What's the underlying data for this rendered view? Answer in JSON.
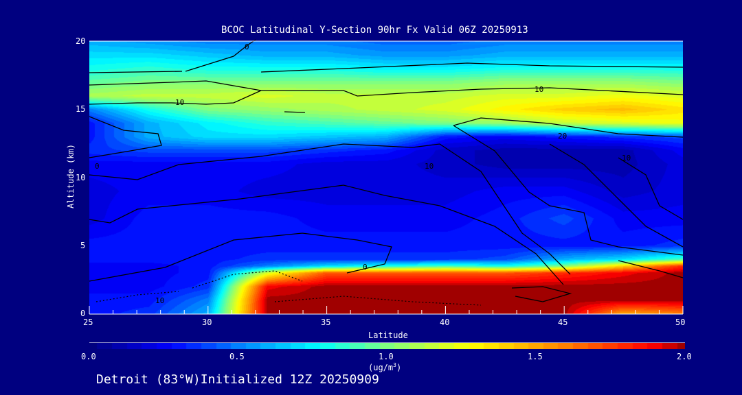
{
  "chart_data": {
    "type": "heatmap",
    "subtype": "filled-contour-cross-section",
    "title": "BCOC Latitudinal Y-Section 90hr  Fx Valid 06Z 20250913",
    "xlabel": "Latitude",
    "ylabel": "Altitude (km)",
    "xlim": [
      25,
      50
    ],
    "ylim": [
      0,
      20
    ],
    "xticks": [
      "25",
      "30",
      "35",
      "40",
      "45",
      "50"
    ],
    "yticks": [
      "0",
      "5",
      "10",
      "15",
      "20"
    ],
    "colorbar": {
      "range": [
        0.0,
        2.0
      ],
      "ticks": [
        "0.0",
        "0.5",
        "1.0",
        "1.5",
        "2.0"
      ],
      "units_prefix": "(ug/m",
      "units_sup": "3",
      "units_suffix": ")",
      "stops": [
        [
          0,
          "#000080"
        ],
        [
          0.27,
          "#0000ff"
        ],
        [
          0.5,
          "#0080ff"
        ],
        [
          0.77,
          "#00ffff"
        ],
        [
          1.0,
          "#80ff80"
        ],
        [
          1.28,
          "#ffff00"
        ],
        [
          1.6,
          "#ff8000"
        ],
        [
          1.89,
          "#ff0000"
        ],
        [
          2.0,
          "#a00000"
        ]
      ]
    },
    "grid_lat": [
      25,
      27.5,
      30,
      32.5,
      35,
      37.5,
      40,
      42.5,
      45,
      47.5,
      50
    ],
    "grid_alt": [
      0,
      1,
      2,
      3,
      3.5,
      4,
      5,
      7,
      9,
      11,
      12,
      13,
      14,
      15,
      16,
      17,
      18,
      19,
      20
    ],
    "values": [
      [
        0.3,
        0.35,
        0.6,
        2,
        2,
        2,
        2,
        2,
        2,
        1.5,
        1.6
      ],
      [
        0.3,
        0.3,
        0.5,
        2,
        2,
        2,
        2,
        2,
        2,
        2,
        2
      ],
      [
        0.25,
        0.25,
        0.35,
        1.9,
        2,
        2,
        2,
        2,
        2,
        2,
        2
      ],
      [
        0.25,
        0.25,
        0.3,
        1.2,
        1.7,
        1.7,
        1.7,
        1.7,
        1.8,
        1.9,
        2
      ],
      [
        0.25,
        0.25,
        0.3,
        0.5,
        0.7,
        0.8,
        0.9,
        0.8,
        1.0,
        1.4,
        1.8
      ],
      [
        0.3,
        0.3,
        0.3,
        0.35,
        0.35,
        0.35,
        0.35,
        0.4,
        0.6,
        0.7,
        0.9
      ],
      [
        0.3,
        0.3,
        0.3,
        0.3,
        0.3,
        0.3,
        0.3,
        0.3,
        0.3,
        0.3,
        0.35
      ],
      [
        0.2,
        0.3,
        0.3,
        0.3,
        0.25,
        0.25,
        0.25,
        0.3,
        0.4,
        0.25,
        0.25
      ],
      [
        0.2,
        0.25,
        0.25,
        0.2,
        0.2,
        0.2,
        0.2,
        0.25,
        0.25,
        0.15,
        0.2
      ],
      [
        0.25,
        0.25,
        0.25,
        0.25,
        0.2,
        0.2,
        0.15,
        0.1,
        0.1,
        0.1,
        0.2
      ],
      [
        0.35,
        0.4,
        0.4,
        0.4,
        0.35,
        0.3,
        0.15,
        0.1,
        0.1,
        0.1,
        0.25
      ],
      [
        0.3,
        0.6,
        0.7,
        0.7,
        0.65,
        0.6,
        0.3,
        0.25,
        0.3,
        0.35,
        0.4
      ],
      [
        0.3,
        0.6,
        0.75,
        0.85,
        0.9,
        0.95,
        1.0,
        1.05,
        1.15,
        1.2,
        1.25
      ],
      [
        0.5,
        0.8,
        1.0,
        1.05,
        1.1,
        1.15,
        1.2,
        1.3,
        1.4,
        1.45,
        1.35
      ],
      [
        1.1,
        1.15,
        1.15,
        1.2,
        1.15,
        1.15,
        1.15,
        1.2,
        1.2,
        1.25,
        1.2
      ],
      [
        0.95,
        1.0,
        1.0,
        1.0,
        1.0,
        1.0,
        1.0,
        1.05,
        1.05,
        1.05,
        1.0
      ],
      [
        0.8,
        0.85,
        0.8,
        0.8,
        0.8,
        0.75,
        0.75,
        0.8,
        0.8,
        0.8,
        0.8
      ],
      [
        0.7,
        0.7,
        0.65,
        0.6,
        0.6,
        0.55,
        0.55,
        0.6,
        0.6,
        0.6,
        0.6
      ],
      [
        0.6,
        0.55,
        0.5,
        0.5,
        0.5,
        0.45,
        0.45,
        0.5,
        0.5,
        0.5,
        0.5
      ]
    ],
    "contour_labels": [
      "0",
      "10",
      "10",
      "20",
      "10",
      "0",
      "10",
      "0",
      "10"
    ]
  },
  "footer": "Detroit (83°W)Initialized 12Z 20250909"
}
